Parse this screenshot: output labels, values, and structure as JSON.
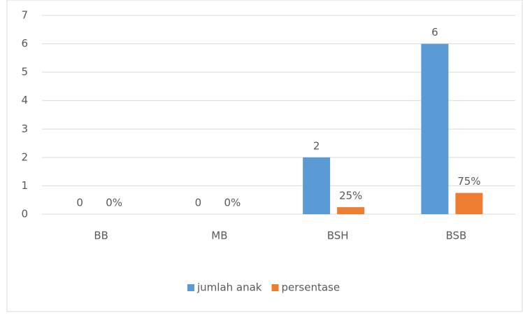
{
  "chart_data": {
    "type": "bar",
    "categories": [
      "BB",
      "MB",
      "BSH",
      "BSB"
    ],
    "series": [
      {
        "name": "jumlah anak",
        "color": "#5b9bd5",
        "values": [
          0,
          0,
          2,
          6
        ]
      },
      {
        "name": "persentase",
        "color": "#ed7d31",
        "values": [
          0,
          0,
          0.25,
          0.75
        ],
        "value_labels": [
          "0%",
          "0%",
          "25%",
          "75%"
        ]
      }
    ],
    "ylim": [
      0,
      7
    ],
    "yticks": [
      0,
      1,
      2,
      3,
      4,
      5,
      6,
      7
    ],
    "grid": true,
    "legend": "bottom"
  }
}
